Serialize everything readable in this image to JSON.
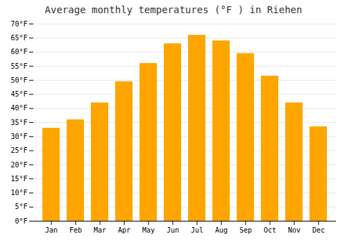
{
  "chart_data": {
    "type": "bar",
    "title": "Average monthly temperatures (°F ) in Riehen",
    "categories": [
      "Jan",
      "Feb",
      "Mar",
      "Apr",
      "May",
      "Jun",
      "Jul",
      "Aug",
      "Sep",
      "Oct",
      "Nov",
      "Dec"
    ],
    "values": [
      33,
      36,
      42,
      49.5,
      56,
      63,
      66,
      64,
      59.5,
      51.5,
      42,
      33.5
    ],
    "color": "#FFA500",
    "ylim": [
      0,
      70
    ],
    "yticks": [
      {
        "value": 0,
        "label": "0°F"
      },
      {
        "value": 5,
        "label": "5°F"
      },
      {
        "value": 10,
        "label": "10°F"
      },
      {
        "value": 15,
        "label": "15°F"
      },
      {
        "value": 20,
        "label": "20°F"
      },
      {
        "value": 25,
        "label": "25°F"
      },
      {
        "value": 30,
        "label": "30°F"
      },
      {
        "value": 35,
        "label": "35°F"
      },
      {
        "value": 40,
        "label": "40°F"
      },
      {
        "value": 45,
        "label": "45°F"
      },
      {
        "value": 50,
        "label": "50°F"
      },
      {
        "value": 55,
        "label": "55°F"
      },
      {
        "value": 60,
        "label": "60°F"
      },
      {
        "value": 65,
        "label": "65°F"
      },
      {
        "value": 70,
        "label": "70°F"
      }
    ],
    "grid": true
  }
}
